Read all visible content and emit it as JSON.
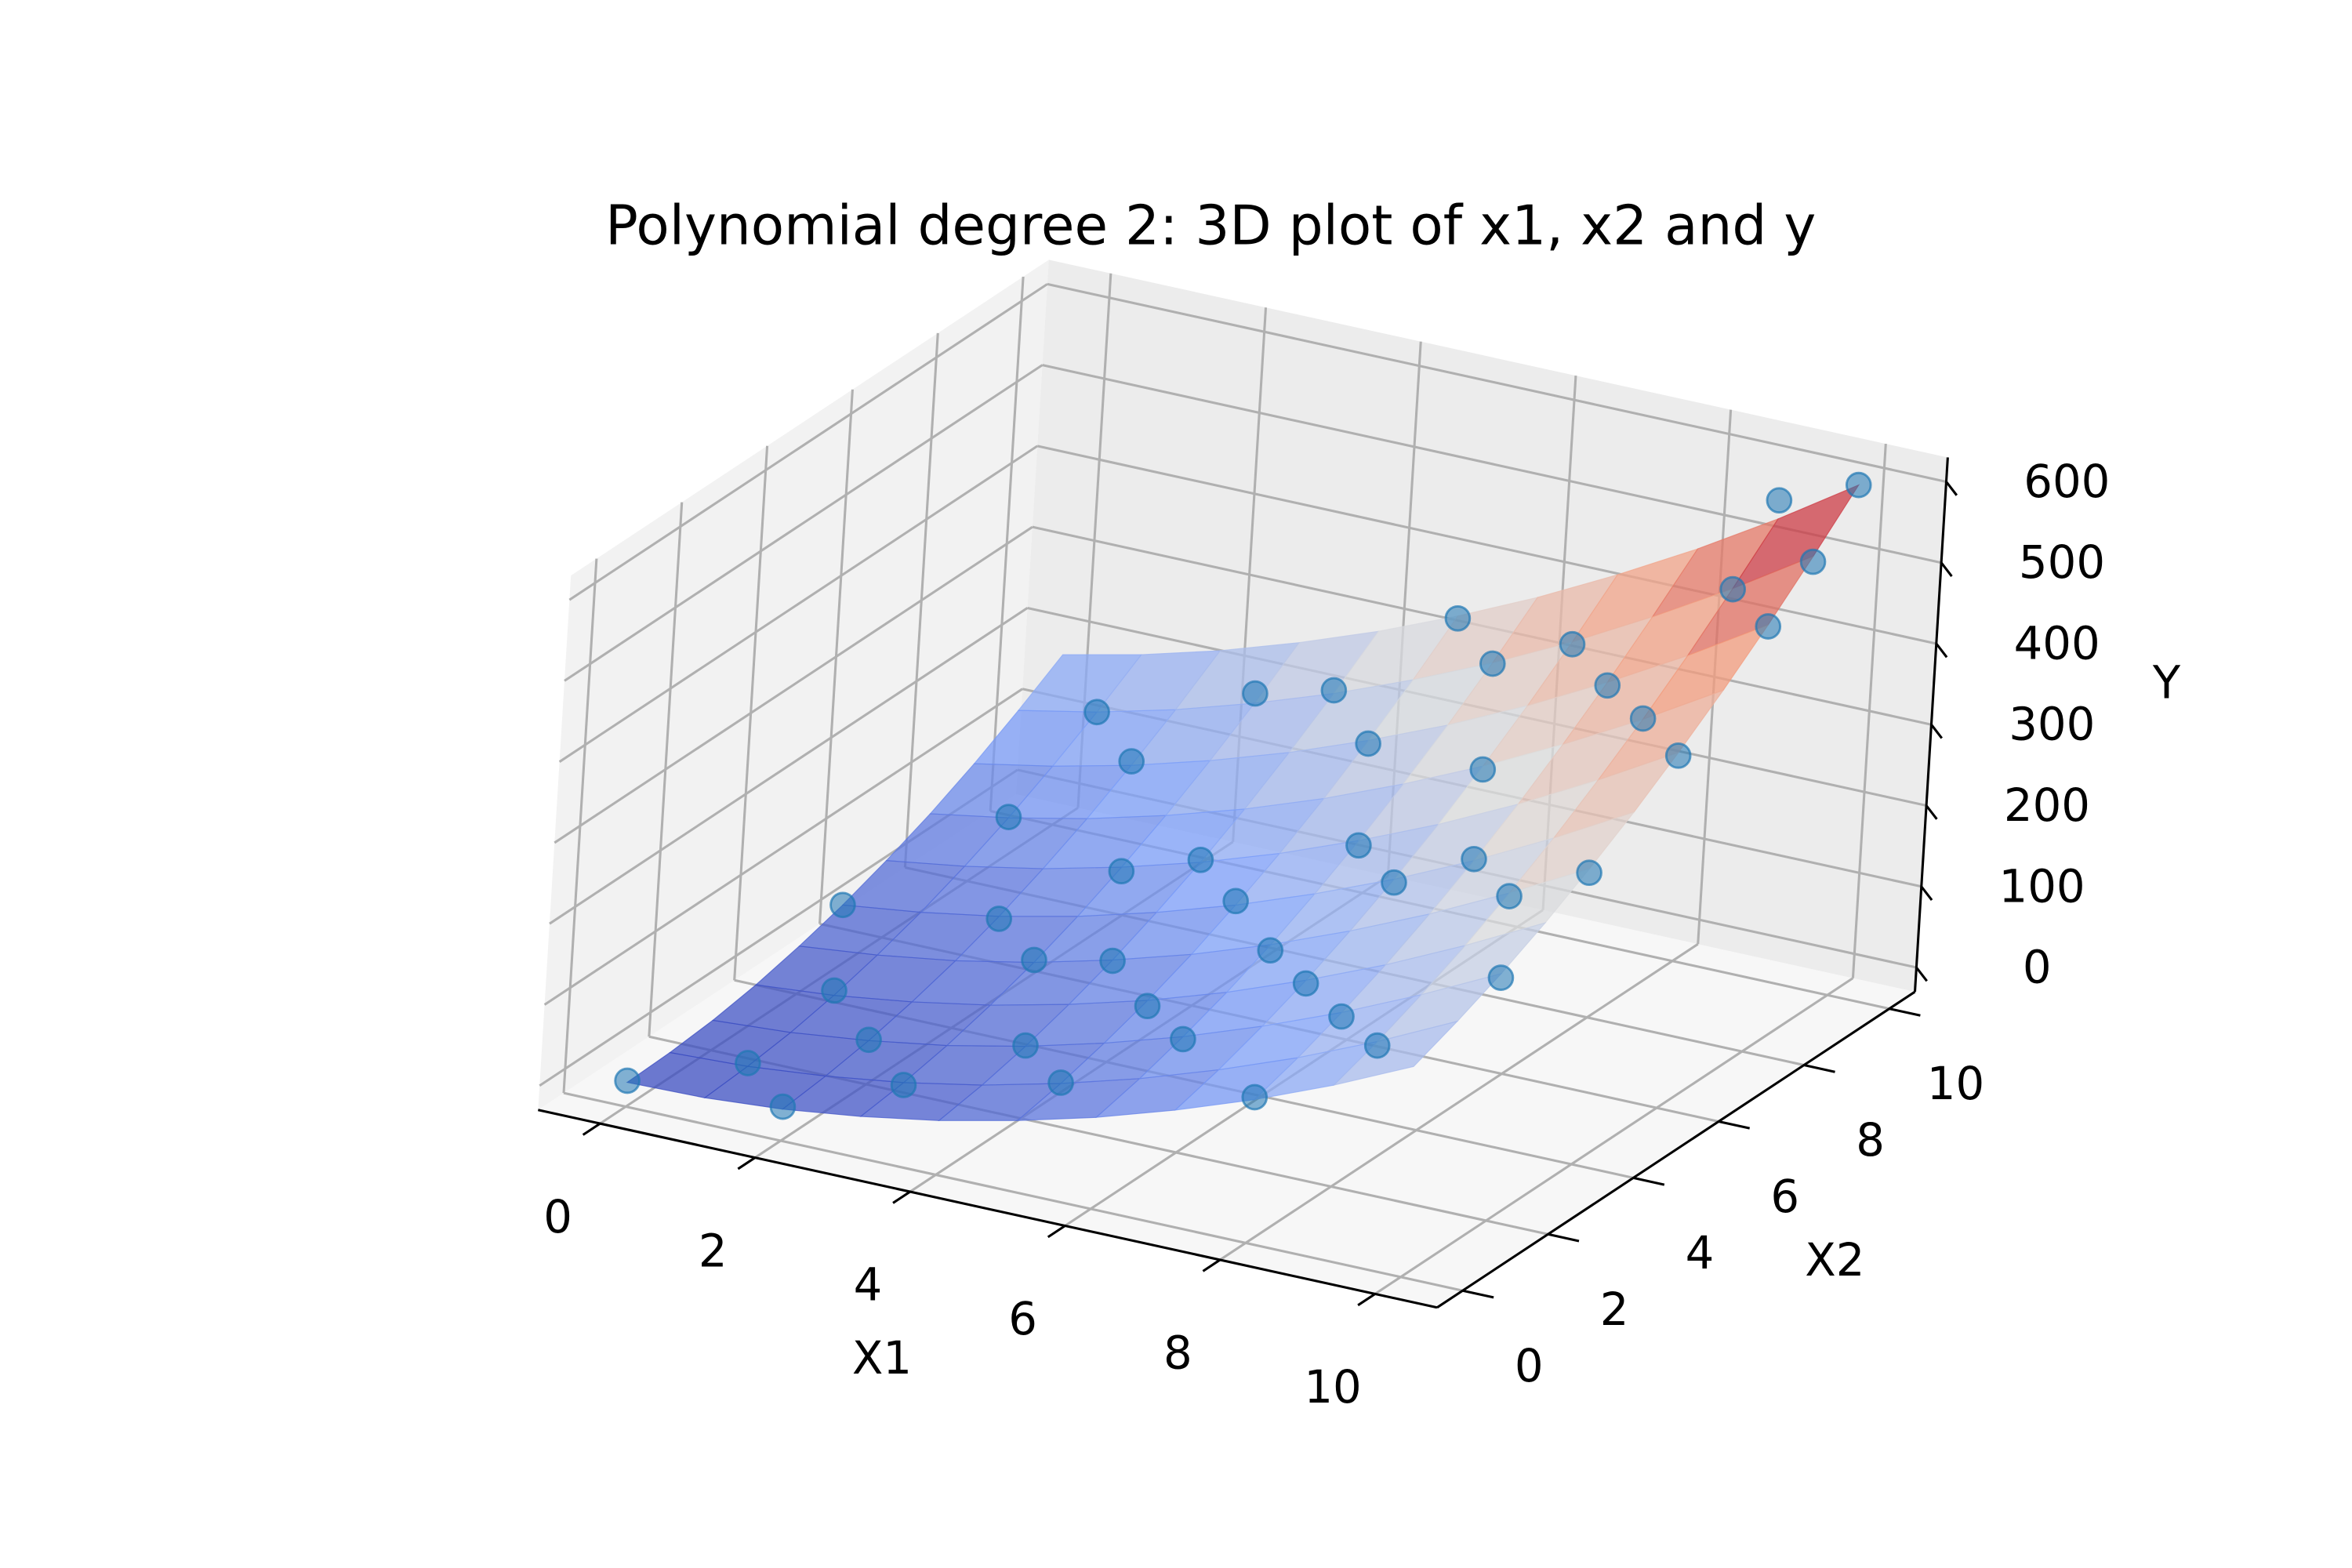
{
  "chart_data": {
    "type": "scatter3d",
    "title": "Polynomial degree 2: 3D plot of x1, x2 and y",
    "xlabel": "X1",
    "ylabel": "X2",
    "zlabel": "Y",
    "xlim": [
      -0.8,
      10.8
    ],
    "ylim": [
      -0.6,
      10.6
    ],
    "zlim": [
      -30,
      630
    ],
    "xticks": [
      0,
      2,
      4,
      6,
      8,
      10
    ],
    "yticks": [
      0,
      2,
      4,
      6,
      8,
      10
    ],
    "zticks": [
      0,
      100,
      200,
      300,
      400,
      500,
      600
    ],
    "grid": true,
    "series": [
      {
        "color": "#1f77b4",
        "x": [
          0,
          10,
          10,
          9,
          1,
          2,
          3,
          1,
          4,
          2,
          5,
          3,
          6,
          4,
          5,
          7,
          2,
          6,
          8,
          3,
          7,
          9,
          5,
          8,
          1,
          6,
          9,
          8,
          10,
          4,
          7,
          10,
          2,
          5,
          3,
          9,
          6,
          0,
          8,
          10,
          4,
          7,
          1,
          9,
          5,
          10
        ],
        "y": [
          0,
          10,
          9,
          10,
          1,
          0,
          1,
          3,
          2,
          5,
          1,
          4,
          2,
          6,
          5,
          3,
          8,
          6,
          2,
          9,
          7,
          4,
          8,
          5,
          7,
          9,
          7,
          8,
          4,
          9,
          5,
          6,
          2,
          3,
          6,
          9,
          4,
          5,
          0,
          2,
          4,
          9,
          9,
          1,
          10,
          8
        ],
        "z": [
          2,
          600,
          540,
          560,
          10,
          12,
          25,
          30,
          60,
          70,
          70,
          75,
          110,
          150,
          155,
          165,
          160,
          210,
          180,
          230,
          290,
          280,
          245,
          270,
          105,
          330,
          395,
          380,
          330,
          255,
          220,
          405,
          25,
          95,
          115,
          485,
          150,
          45,
          150,
          270,
          95,
          375,
          165,
          200,
          330,
          495
        ]
      }
    ],
    "surface": {
      "colormap": "coolwarm",
      "x": [
        0,
        1,
        2,
        3,
        4,
        5,
        6,
        7,
        8,
        9,
        10
      ],
      "y": [
        0,
        1,
        2,
        3,
        4,
        5,
        6,
        7,
        8,
        9,
        10
      ],
      "z": [
        [
          0,
          2,
          9,
          21,
          37,
          58,
          83,
          113,
          147,
          186,
          230
        ],
        [
          2,
          6,
          15,
          28,
          46,
          69,
          96,
          128,
          164,
          205,
          251
        ],
        [
          7,
          13,
          24,
          39,
          59,
          84,
          113,
          147,
          185,
          228,
          275
        ],
        [
          16,
          24,
          37,
          54,
          76,
          102,
          133,
          169,
          209,
          254,
          303
        ],
        [
          29,
          39,
          53,
          72,
          96,
          124,
          157,
          195,
          237,
          284,
          335
        ],
        [
          45,
          57,
          73,
          94,
          120,
          150,
          185,
          224,
          268,
          317,
          370
        ],
        [
          65,
          79,
          97,
          120,
          147,
          179,
          216,
          257,
          303,
          354,
          409
        ],
        [
          88,
          104,
          124,
          149,
          178,
          212,
          251,
          294,
          342,
          394,
          451
        ],
        [
          115,
          133,
          155,
          182,
          213,
          249,
          289,
          334,
          384,
          438,
          497
        ],
        [
          146,
          165,
          189,
          218,
          251,
          289,
          331,
          378,
          430,
          486,
          547
        ],
        [
          180,
          201,
          227,
          258,
          293,
          333,
          377,
          426,
          479,
          537,
          600
        ]
      ]
    }
  }
}
